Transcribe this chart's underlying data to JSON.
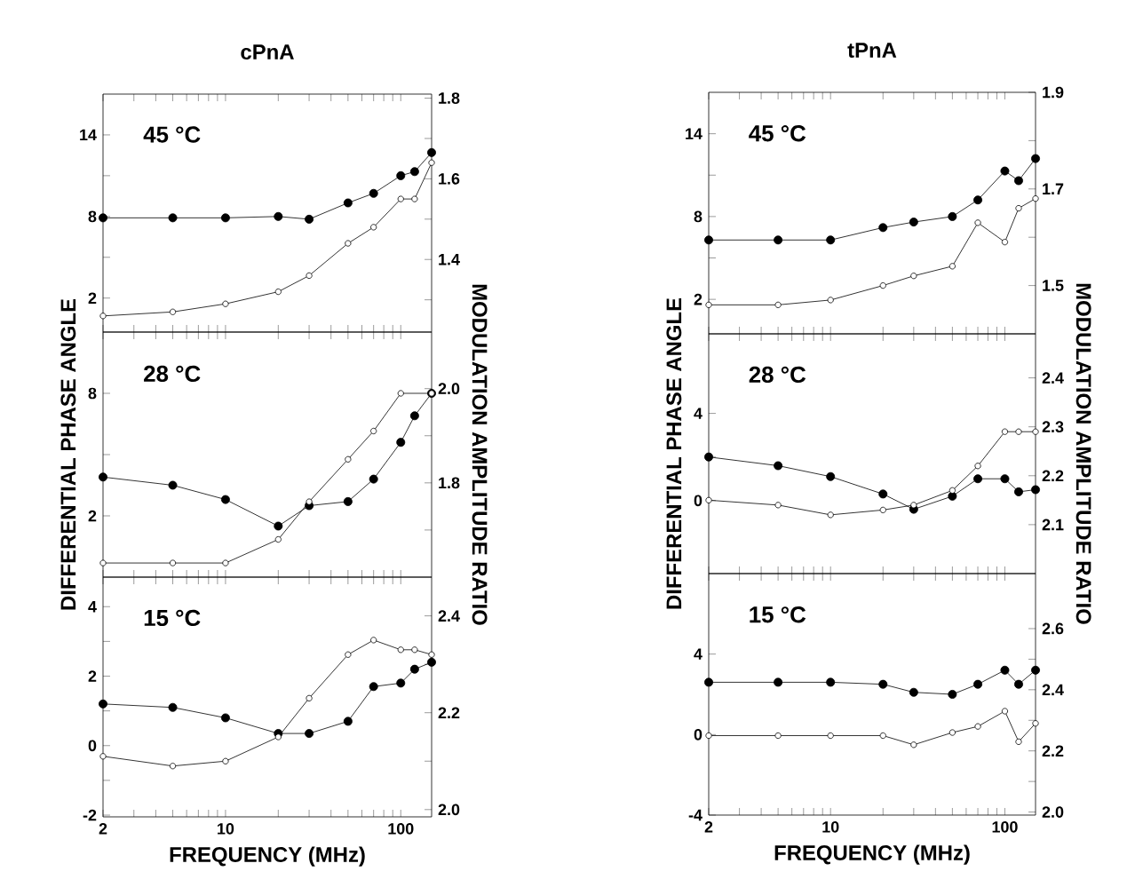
{
  "chart_data": [
    {
      "type": "line",
      "title": "cPnA",
      "annotations": [
        "45 °C"
      ],
      "log": "x",
      "marker": "circle",
      "tick_labels": "y",
      "x": [
        2,
        5,
        10,
        20,
        30,
        50,
        70,
        100,
        120,
        150
      ],
      "xlim": [
        2,
        150
      ],
      "xticks": [
        2,
        {
          "value": 3,
          "label": null
        },
        {
          "value": 4,
          "label": null
        },
        {
          "value": 5,
          "label": null
        },
        {
          "value": 6,
          "label": null
        },
        {
          "value": 7,
          "label": null
        },
        {
          "value": 8,
          "label": null
        },
        {
          "value": 9,
          "label": null
        },
        10,
        {
          "value": 20,
          "label": null
        },
        {
          "value": 30,
          "label": null
        },
        {
          "value": 40,
          "label": null
        },
        {
          "value": 50,
          "label": null
        },
        {
          "value": 60,
          "label": null
        },
        {
          "value": 70,
          "label": null
        },
        {
          "value": 80,
          "label": null
        },
        {
          "value": 90,
          "label": null
        },
        100
      ],
      "ylim": [
        -0.5,
        17
      ],
      "yticks": [
        2,
        {
          "value": 5,
          "label": null
        },
        8,
        {
          "value": 11,
          "label": null
        },
        14
      ],
      "y2lim": [
        1.22,
        1.81
      ],
      "y2ticks": [
        {
          "value": 1.3,
          "label": null
        },
        1.4,
        {
          "value": 1.5,
          "label": null
        },
        1.6,
        {
          "value": 1.7,
          "label": null
        },
        1.8
      ],
      "series": [
        {
          "color": "#000000",
          "values": [
            7.9,
            7.9,
            7.9,
            8.0,
            7.8,
            9.0,
            9.7,
            11.0,
            11.3,
            12.7
          ]
        },
        {
          "color": "#000000",
          "axis": "y2",
          "values": [
            1.26,
            1.27,
            1.29,
            1.32,
            1.36,
            1.44,
            1.48,
            1.55,
            1.55,
            1.64
          ]
        }
      ]
    },
    {
      "type": "line",
      "ylabel": "DIFFERENTIAL PHASE ANGLE",
      "y2label": "MODULATION AMPLITUDE RATIO",
      "annotations": [
        "28 °C"
      ],
      "log": "x",
      "marker": "circle",
      "tick_labels": "y",
      "x": [
        2,
        5,
        10,
        20,
        30,
        50,
        70,
        100,
        120,
        150
      ],
      "xlim": [
        2,
        150
      ],
      "xticks": [
        2,
        {
          "value": 3,
          "label": null
        },
        {
          "value": 4,
          "label": null
        },
        {
          "value": 5,
          "label": null
        },
        {
          "value": 6,
          "label": null
        },
        {
          "value": 7,
          "label": null
        },
        {
          "value": 8,
          "label": null
        },
        {
          "value": 9,
          "label": null
        },
        10,
        {
          "value": 20,
          "label": null
        },
        {
          "value": 30,
          "label": null
        },
        {
          "value": 40,
          "label": null
        },
        {
          "value": 50,
          "label": null
        },
        {
          "value": 60,
          "label": null
        },
        {
          "value": 70,
          "label": null
        },
        {
          "value": 80,
          "label": null
        },
        {
          "value": 90,
          "label": null
        },
        100
      ],
      "ylim": [
        -1,
        11
      ],
      "yticks": [
        2,
        {
          "value": 5,
          "label": null
        },
        8
      ],
      "y2lim": [
        1.6,
        2.12
      ],
      "y2ticks": [
        {
          "value": 1.7,
          "label": null
        },
        1.8,
        {
          "value": 1.9,
          "label": null
        },
        {
          "value": 2,
          "label": "2.0"
        }
      ],
      "series": [
        {
          "color": "#000000",
          "values": [
            3.9,
            3.5,
            2.8,
            1.5,
            2.5,
            2.7,
            3.8,
            5.6,
            6.9,
            8.0
          ]
        },
        {
          "color": "#000000",
          "axis": "y2",
          "values": [
            1.63,
            1.63,
            1.63,
            1.68,
            1.76,
            1.85,
            1.91,
            1.99,
            null,
            1.99
          ]
        }
      ]
    },
    {
      "type": "line",
      "xlabel": "FREQUENCY (MHz)",
      "annotations": [
        "15 °C"
      ],
      "log": "x",
      "marker": "circle",
      "x": [
        2,
        5,
        10,
        20,
        30,
        50,
        70,
        100,
        120,
        150
      ],
      "xlim": [
        2,
        150
      ],
      "xticks": [
        2,
        {
          "value": 3,
          "label": null
        },
        {
          "value": 4,
          "label": null
        },
        {
          "value": 5,
          "label": null
        },
        {
          "value": 6,
          "label": null
        },
        {
          "value": 7,
          "label": null
        },
        {
          "value": 8,
          "label": null
        },
        {
          "value": 9,
          "label": null
        },
        10,
        {
          "value": 20,
          "label": null
        },
        {
          "value": 30,
          "label": null
        },
        {
          "value": 40,
          "label": null
        },
        {
          "value": 50,
          "label": null
        },
        {
          "value": 60,
          "label": null
        },
        {
          "value": 70,
          "label": null
        },
        {
          "value": 80,
          "label": null
        },
        {
          "value": 90,
          "label": null
        },
        100
      ],
      "ylim": [
        -2.05,
        4.85
      ],
      "yticks": [
        -2,
        {
          "value": -1,
          "label": null
        },
        0,
        {
          "value": 1,
          "label": null
        },
        2,
        {
          "value": 3,
          "label": null
        },
        4
      ],
      "y2lim": [
        1.985,
        2.48
      ],
      "y2ticks": [
        {
          "value": 2,
          "label": "2.0"
        },
        {
          "value": 2.1,
          "label": null
        },
        2.2,
        {
          "value": 2.3,
          "label": null
        },
        2.4
      ],
      "series": [
        {
          "color": "#000000",
          "values": [
            1.2,
            1.1,
            0.8,
            0.35,
            0.35,
            0.7,
            1.7,
            1.8,
            2.2,
            2.4
          ]
        },
        {
          "color": "#000000",
          "axis": "y2",
          "values": [
            2.11,
            2.09,
            2.1,
            2.15,
            2.23,
            2.32,
            2.35,
            2.33,
            2.33,
            2.32
          ]
        }
      ]
    },
    {
      "type": "line",
      "title": "tPnA",
      "annotations": [
        "45 °C"
      ],
      "log": "x",
      "marker": "circle",
      "tick_labels": "y",
      "x": [
        2,
        5,
        10,
        20,
        30,
        50,
        70,
        100,
        120,
        150
      ],
      "xlim": [
        2,
        150
      ],
      "xticks": [
        2,
        {
          "value": 3,
          "label": null
        },
        {
          "value": 4,
          "label": null
        },
        {
          "value": 5,
          "label": null
        },
        {
          "value": 6,
          "label": null
        },
        {
          "value": 7,
          "label": null
        },
        {
          "value": 8,
          "label": null
        },
        {
          "value": 9,
          "label": null
        },
        10,
        {
          "value": 20,
          "label": null
        },
        {
          "value": 30,
          "label": null
        },
        {
          "value": 40,
          "label": null
        },
        {
          "value": 50,
          "label": null
        },
        {
          "value": 60,
          "label": null
        },
        {
          "value": 70,
          "label": null
        },
        {
          "value": 80,
          "label": null
        },
        {
          "value": 90,
          "label": null
        },
        100
      ],
      "ylim": [
        -0.5,
        17
      ],
      "yticks": [
        2,
        {
          "value": 5,
          "label": null
        },
        8,
        {
          "value": 11,
          "label": null
        },
        14
      ],
      "y2lim": [
        1.4,
        1.9
      ],
      "y2ticks": [
        1.5,
        {
          "value": 1.6,
          "label": null
        },
        1.7,
        {
          "value": 1.8,
          "label": null
        },
        1.9
      ],
      "series": [
        {
          "color": "#000000",
          "values": [
            6.3,
            6.3,
            6.3,
            7.2,
            7.6,
            8.0,
            9.2,
            11.3,
            10.6,
            12.2
          ]
        },
        {
          "color": "#000000",
          "axis": "y2",
          "values": [
            1.46,
            1.46,
            1.47,
            1.5,
            1.52,
            1.54,
            1.63,
            1.59,
            1.66,
            1.68
          ]
        }
      ]
    },
    {
      "type": "line",
      "ylabel": "DIFFERENTIAL PHASE ANGLE",
      "y2label": "MODULATION AMPLITUDE RATIO",
      "annotations": [
        "28 °C"
      ],
      "log": "x",
      "marker": "circle",
      "tick_labels": "y",
      "x": [
        2,
        5,
        10,
        20,
        30,
        50,
        70,
        100,
        120,
        150
      ],
      "xlim": [
        2,
        150
      ],
      "xticks": [
        2,
        {
          "value": 3,
          "label": null
        },
        {
          "value": 4,
          "label": null
        },
        {
          "value": 5,
          "label": null
        },
        {
          "value": 6,
          "label": null
        },
        {
          "value": 7,
          "label": null
        },
        {
          "value": 8,
          "label": null
        },
        {
          "value": 9,
          "label": null
        },
        10,
        {
          "value": 20,
          "label": null
        },
        {
          "value": 30,
          "label": null
        },
        {
          "value": 40,
          "label": null
        },
        {
          "value": 50,
          "label": null
        },
        {
          "value": 60,
          "label": null
        },
        {
          "value": 70,
          "label": null
        },
        {
          "value": 80,
          "label": null
        },
        {
          "value": 90,
          "label": null
        },
        100
      ],
      "ylim": [
        -3.35,
        7.65
      ],
      "yticks": [
        0,
        {
          "value": 2,
          "label": null
        },
        4
      ],
      "y2lim": [
        2.0,
        2.49
      ],
      "y2ticks": [
        2.1,
        2.2,
        2.3,
        2.4
      ],
      "series": [
        {
          "color": "#000000",
          "values": [
            2.0,
            1.6,
            1.1,
            0.3,
            -0.4,
            0.2,
            1.0,
            1.0,
            0.4,
            0.5
          ]
        },
        {
          "color": "#000000",
          "axis": "y2",
          "values": [
            2.15,
            2.14,
            2.12,
            2.13,
            2.14,
            2.17,
            2.22,
            2.29,
            2.29,
            2.29
          ]
        }
      ]
    },
    {
      "type": "line",
      "xlabel": "FREQUENCY (MHz)",
      "annotations": [
        "15 °C"
      ],
      "log": "x",
      "marker": "circle",
      "x": [
        2,
        5,
        10,
        20,
        30,
        50,
        70,
        100,
        120,
        150
      ],
      "xlim": [
        2,
        150
      ],
      "xticks": [
        2,
        {
          "value": 3,
          "label": null
        },
        {
          "value": 4,
          "label": null
        },
        {
          "value": 5,
          "label": null
        },
        {
          "value": 6,
          "label": null
        },
        {
          "value": 7,
          "label": null
        },
        {
          "value": 8,
          "label": null
        },
        {
          "value": 9,
          "label": null
        },
        10,
        {
          "value": 20,
          "label": null
        },
        {
          "value": 30,
          "label": null
        },
        {
          "value": 40,
          "label": null
        },
        {
          "value": 50,
          "label": null
        },
        {
          "value": 60,
          "label": null
        },
        {
          "value": 70,
          "label": null
        },
        {
          "value": 80,
          "label": null
        },
        {
          "value": 90,
          "label": null
        },
        100
      ],
      "ylim": [
        -4,
        8
      ],
      "yticks": [
        -4,
        0,
        4
      ],
      "y2lim": [
        1.99,
        2.78
      ],
      "y2ticks": [
        {
          "value": 2,
          "label": "2.0"
        },
        {
          "value": 2.1,
          "label": null
        },
        2.2,
        {
          "value": 2.3,
          "label": null
        },
        2.4,
        {
          "value": 2.5,
          "label": null
        },
        2.6
      ],
      "series": [
        {
          "color": "#000000",
          "values": [
            2.6,
            2.6,
            2.6,
            2.5,
            2.1,
            2.0,
            2.5,
            3.2,
            2.5,
            3.2
          ]
        },
        {
          "color": "#000000",
          "axis": "y2",
          "values": [
            2.25,
            2.25,
            2.25,
            2.25,
            2.22,
            2.26,
            2.28,
            2.33,
            2.23,
            2.29
          ]
        }
      ]
    }
  ]
}
